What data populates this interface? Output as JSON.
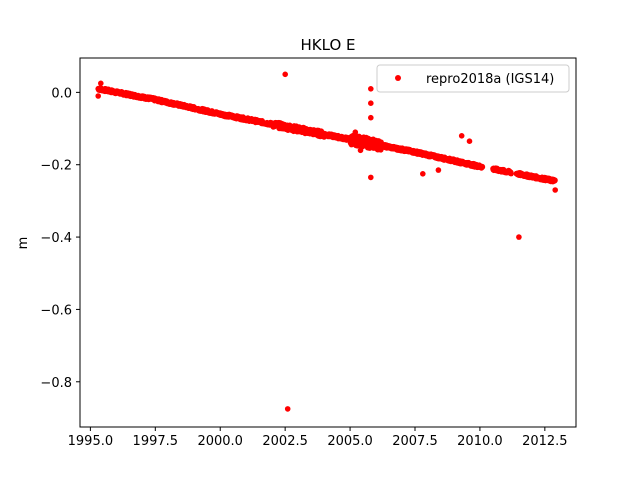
{
  "chart_data": {
    "type": "scatter",
    "title": "HKLO E",
    "xlabel": "",
    "ylabel": "m",
    "xlim": [
      1994.6,
      2013.7
    ],
    "ylim": [
      -0.925,
      0.095
    ],
    "xticks": [
      1995.0,
      1997.5,
      2000.0,
      2002.5,
      2005.0,
      2007.5,
      2010.0,
      2012.5
    ],
    "xtick_labels": [
      "1995.0",
      "1997.5",
      "2000.0",
      "2002.5",
      "2005.0",
      "2007.5",
      "2010.0",
      "2012.5"
    ],
    "yticks": [
      0.0,
      -0.2,
      -0.4,
      -0.6,
      -0.8
    ],
    "ytick_labels": [
      "0.0",
      "−0.2",
      "−0.4",
      "−0.6",
      "−0.8"
    ],
    "grid": false,
    "legend_position": "top-right",
    "series": [
      {
        "name": "repro2018a (IGS14)",
        "color": "#ff0000",
        "marker": "circle",
        "trend": [
          {
            "x": 1995.3,
            "y": 0.01
          },
          {
            "x": 1997.5,
            "y": -0.02
          },
          {
            "x": 2000.0,
            "y": -0.06
          },
          {
            "x": 2002.5,
            "y": -0.095
          },
          {
            "x": 2005.0,
            "y": -0.13
          },
          {
            "x": 2007.5,
            "y": -0.165
          },
          {
            "x": 2010.0,
            "y": -0.205
          },
          {
            "x": 2012.9,
            "y": -0.245
          }
        ],
        "gaps": [
          [
            2010.1,
            2010.5
          ],
          [
            2011.2,
            2011.4
          ]
        ],
        "points": [
          {
            "x": 2002.5,
            "y": 0.05
          },
          {
            "x": 2002.6,
            "y": -0.875
          },
          {
            "x": 2005.8,
            "y": 0.01
          },
          {
            "x": 2005.8,
            "y": -0.03
          },
          {
            "x": 2005.8,
            "y": -0.07
          },
          {
            "x": 2005.8,
            "y": -0.235
          },
          {
            "x": 2005.4,
            "y": -0.16
          },
          {
            "x": 2005.2,
            "y": -0.11
          },
          {
            "x": 2007.8,
            "y": -0.225
          },
          {
            "x": 2008.4,
            "y": -0.215
          },
          {
            "x": 2009.3,
            "y": -0.12
          },
          {
            "x": 2009.6,
            "y": -0.135
          },
          {
            "x": 2011.5,
            "y": -0.4
          },
          {
            "x": 2012.9,
            "y": -0.27
          },
          {
            "x": 1995.4,
            "y": 0.025
          },
          {
            "x": 1995.3,
            "y": -0.01
          }
        ]
      }
    ]
  }
}
